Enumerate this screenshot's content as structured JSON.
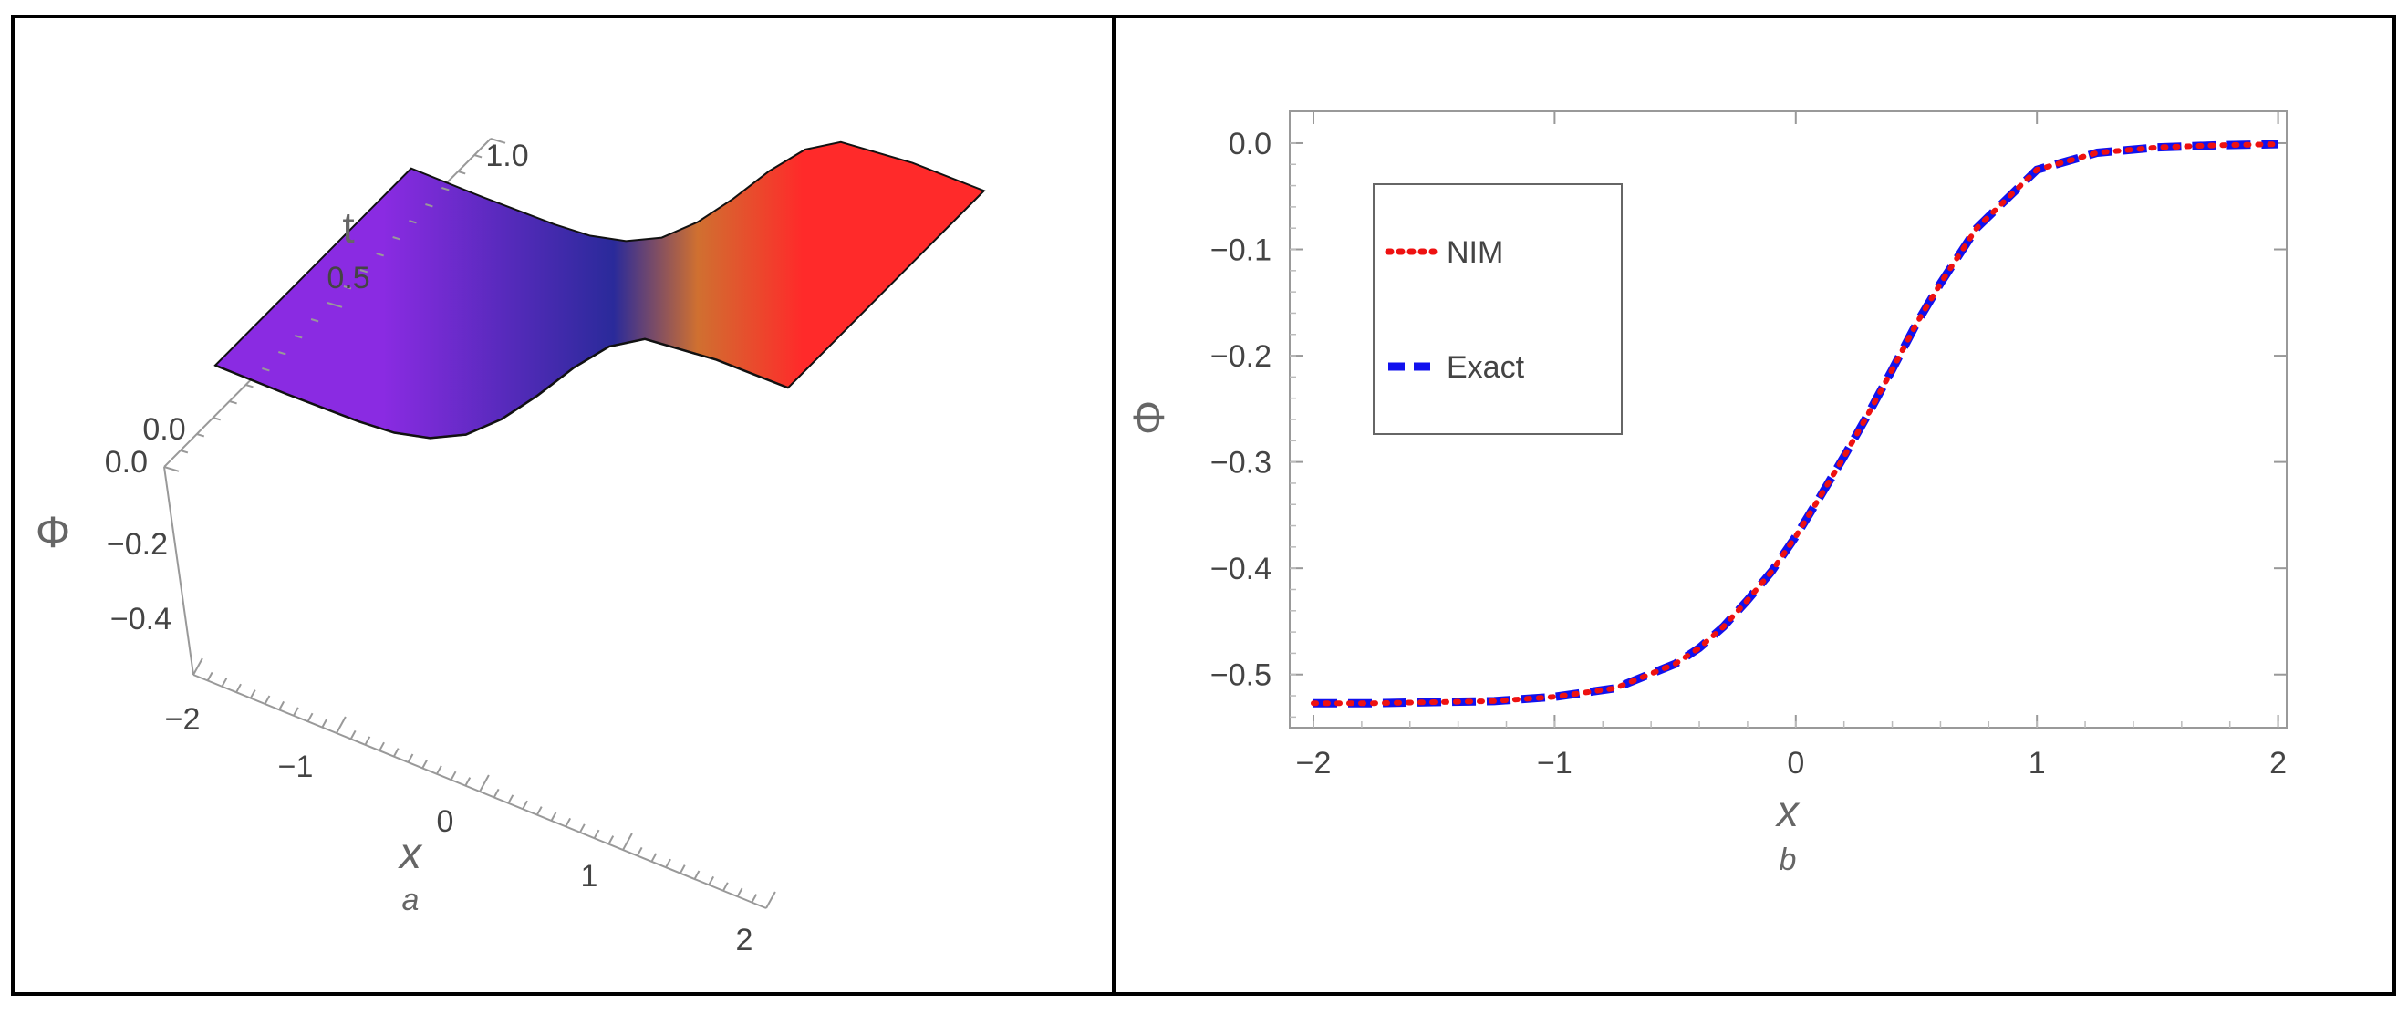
{
  "colors": {
    "frame": "#000000",
    "axis": "#999999",
    "tick_text": "#444444",
    "label_text": "#666666",
    "nim": "#ee1111",
    "exact": "#1111ee",
    "surface_low": "#8a2be2",
    "surface_mid": "#2a2a9a",
    "surface_high": "#ff2a2a"
  },
  "chart_data": [
    {
      "panel": "a",
      "type": "surface",
      "xlabel": "x",
      "ylabel": "t",
      "zlabel": "Φ",
      "x_ticks": [
        "−2",
        "−1",
        "0",
        "1",
        "2"
      ],
      "t_ticks": [
        "0.0",
        "0.5",
        "1.0"
      ],
      "z_ticks": [
        "0.0",
        "−0.2",
        "−0.4"
      ],
      "xlim": [
        -2,
        2
      ],
      "tlim": [
        0,
        1
      ],
      "zlim": [
        -0.53,
        0
      ],
      "profile_x": [
        -2,
        -1.5,
        -1,
        -0.75,
        -0.5,
        -0.25,
        0,
        0.25,
        0.5,
        0.75,
        1,
        1.5,
        2
      ],
      "profile_phi": [
        -0.527,
        -0.526,
        -0.521,
        -0.513,
        -0.49,
        -0.445,
        -0.37,
        -0.275,
        -0.17,
        -0.08,
        -0.025,
        -0.004,
        -0.001
      ]
    },
    {
      "panel": "b",
      "type": "line",
      "xlabel": "x",
      "ylabel": "Φ",
      "xlim": [
        -2,
        2
      ],
      "ylim": [
        -0.55,
        0.03
      ],
      "x_ticks": [
        -2,
        -1,
        0,
        1,
        2
      ],
      "x_tick_labels": [
        "−2",
        "−1",
        "0",
        "1",
        "2"
      ],
      "y_ticks": [
        0,
        -0.1,
        -0.2,
        -0.3,
        -0.4,
        -0.5
      ],
      "y_tick_labels": [
        "0.0",
        "−0.1",
        "−0.2",
        "−0.3",
        "−0.4",
        "−0.5"
      ],
      "legend_position": "top-left",
      "series": [
        {
          "name": "NIM",
          "style": "dotted",
          "x": [
            -2,
            -1.75,
            -1.5,
            -1.25,
            -1,
            -0.75,
            -0.5,
            -0.4,
            -0.3,
            -0.2,
            -0.1,
            0,
            0.1,
            0.2,
            0.3,
            0.4,
            0.5,
            0.6,
            0.75,
            1,
            1.25,
            1.5,
            1.75,
            2
          ],
          "y": [
            -0.527,
            -0.527,
            -0.526,
            -0.525,
            -0.521,
            -0.513,
            -0.49,
            -0.475,
            -0.455,
            -0.43,
            -0.403,
            -0.37,
            -0.333,
            -0.295,
            -0.255,
            -0.213,
            -0.17,
            -0.132,
            -0.08,
            -0.025,
            -0.009,
            -0.004,
            -0.002,
            -0.001
          ]
        },
        {
          "name": "Exact",
          "style": "dashed",
          "x": [
            -2,
            -1.75,
            -1.5,
            -1.25,
            -1,
            -0.75,
            -0.5,
            -0.4,
            -0.3,
            -0.2,
            -0.1,
            0,
            0.1,
            0.2,
            0.3,
            0.4,
            0.5,
            0.6,
            0.75,
            1,
            1.25,
            1.5,
            1.75,
            2
          ],
          "y": [
            -0.527,
            -0.527,
            -0.526,
            -0.525,
            -0.521,
            -0.513,
            -0.49,
            -0.475,
            -0.455,
            -0.43,
            -0.403,
            -0.37,
            -0.333,
            -0.295,
            -0.255,
            -0.213,
            -0.17,
            -0.132,
            -0.08,
            -0.025,
            -0.009,
            -0.004,
            -0.002,
            -0.001
          ]
        }
      ]
    }
  ]
}
